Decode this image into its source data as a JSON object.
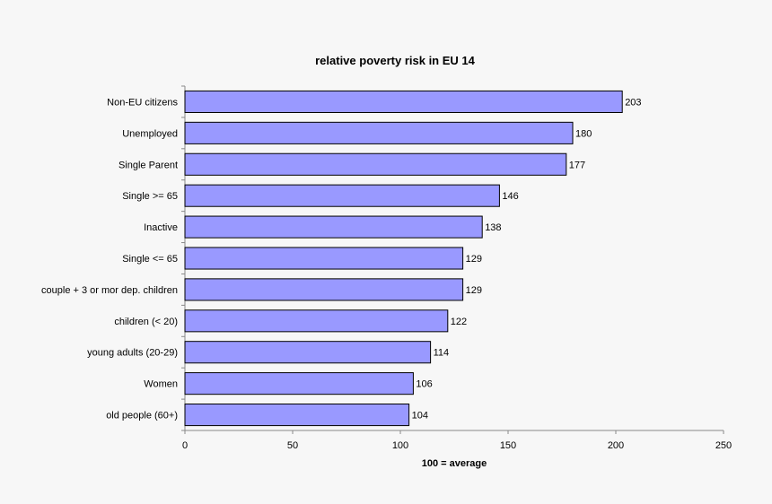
{
  "chart_data": {
    "type": "bar",
    "orientation": "horizontal",
    "title": "relative poverty risk in EU 14",
    "xlabel": "100 = average",
    "ylabel": "",
    "categories": [
      "Non-EU citizens",
      "Unemployed",
      "Single Parent",
      "Single >= 65",
      "Inactive",
      "Single <= 65",
      "couple + 3 or mor dep. children",
      "children (< 20)",
      "young adults (20-29)",
      "Women",
      "old people (60+)"
    ],
    "values": [
      203,
      180,
      177,
      146,
      138,
      129,
      129,
      122,
      114,
      106,
      104
    ],
    "xlim": [
      0,
      250
    ],
    "xticks": [
      0,
      50,
      100,
      150,
      200,
      250
    ],
    "grid": false,
    "legend": "none",
    "data_labels": true,
    "bar_color": "#9999ff",
    "bar_edge_color": "#000000"
  }
}
